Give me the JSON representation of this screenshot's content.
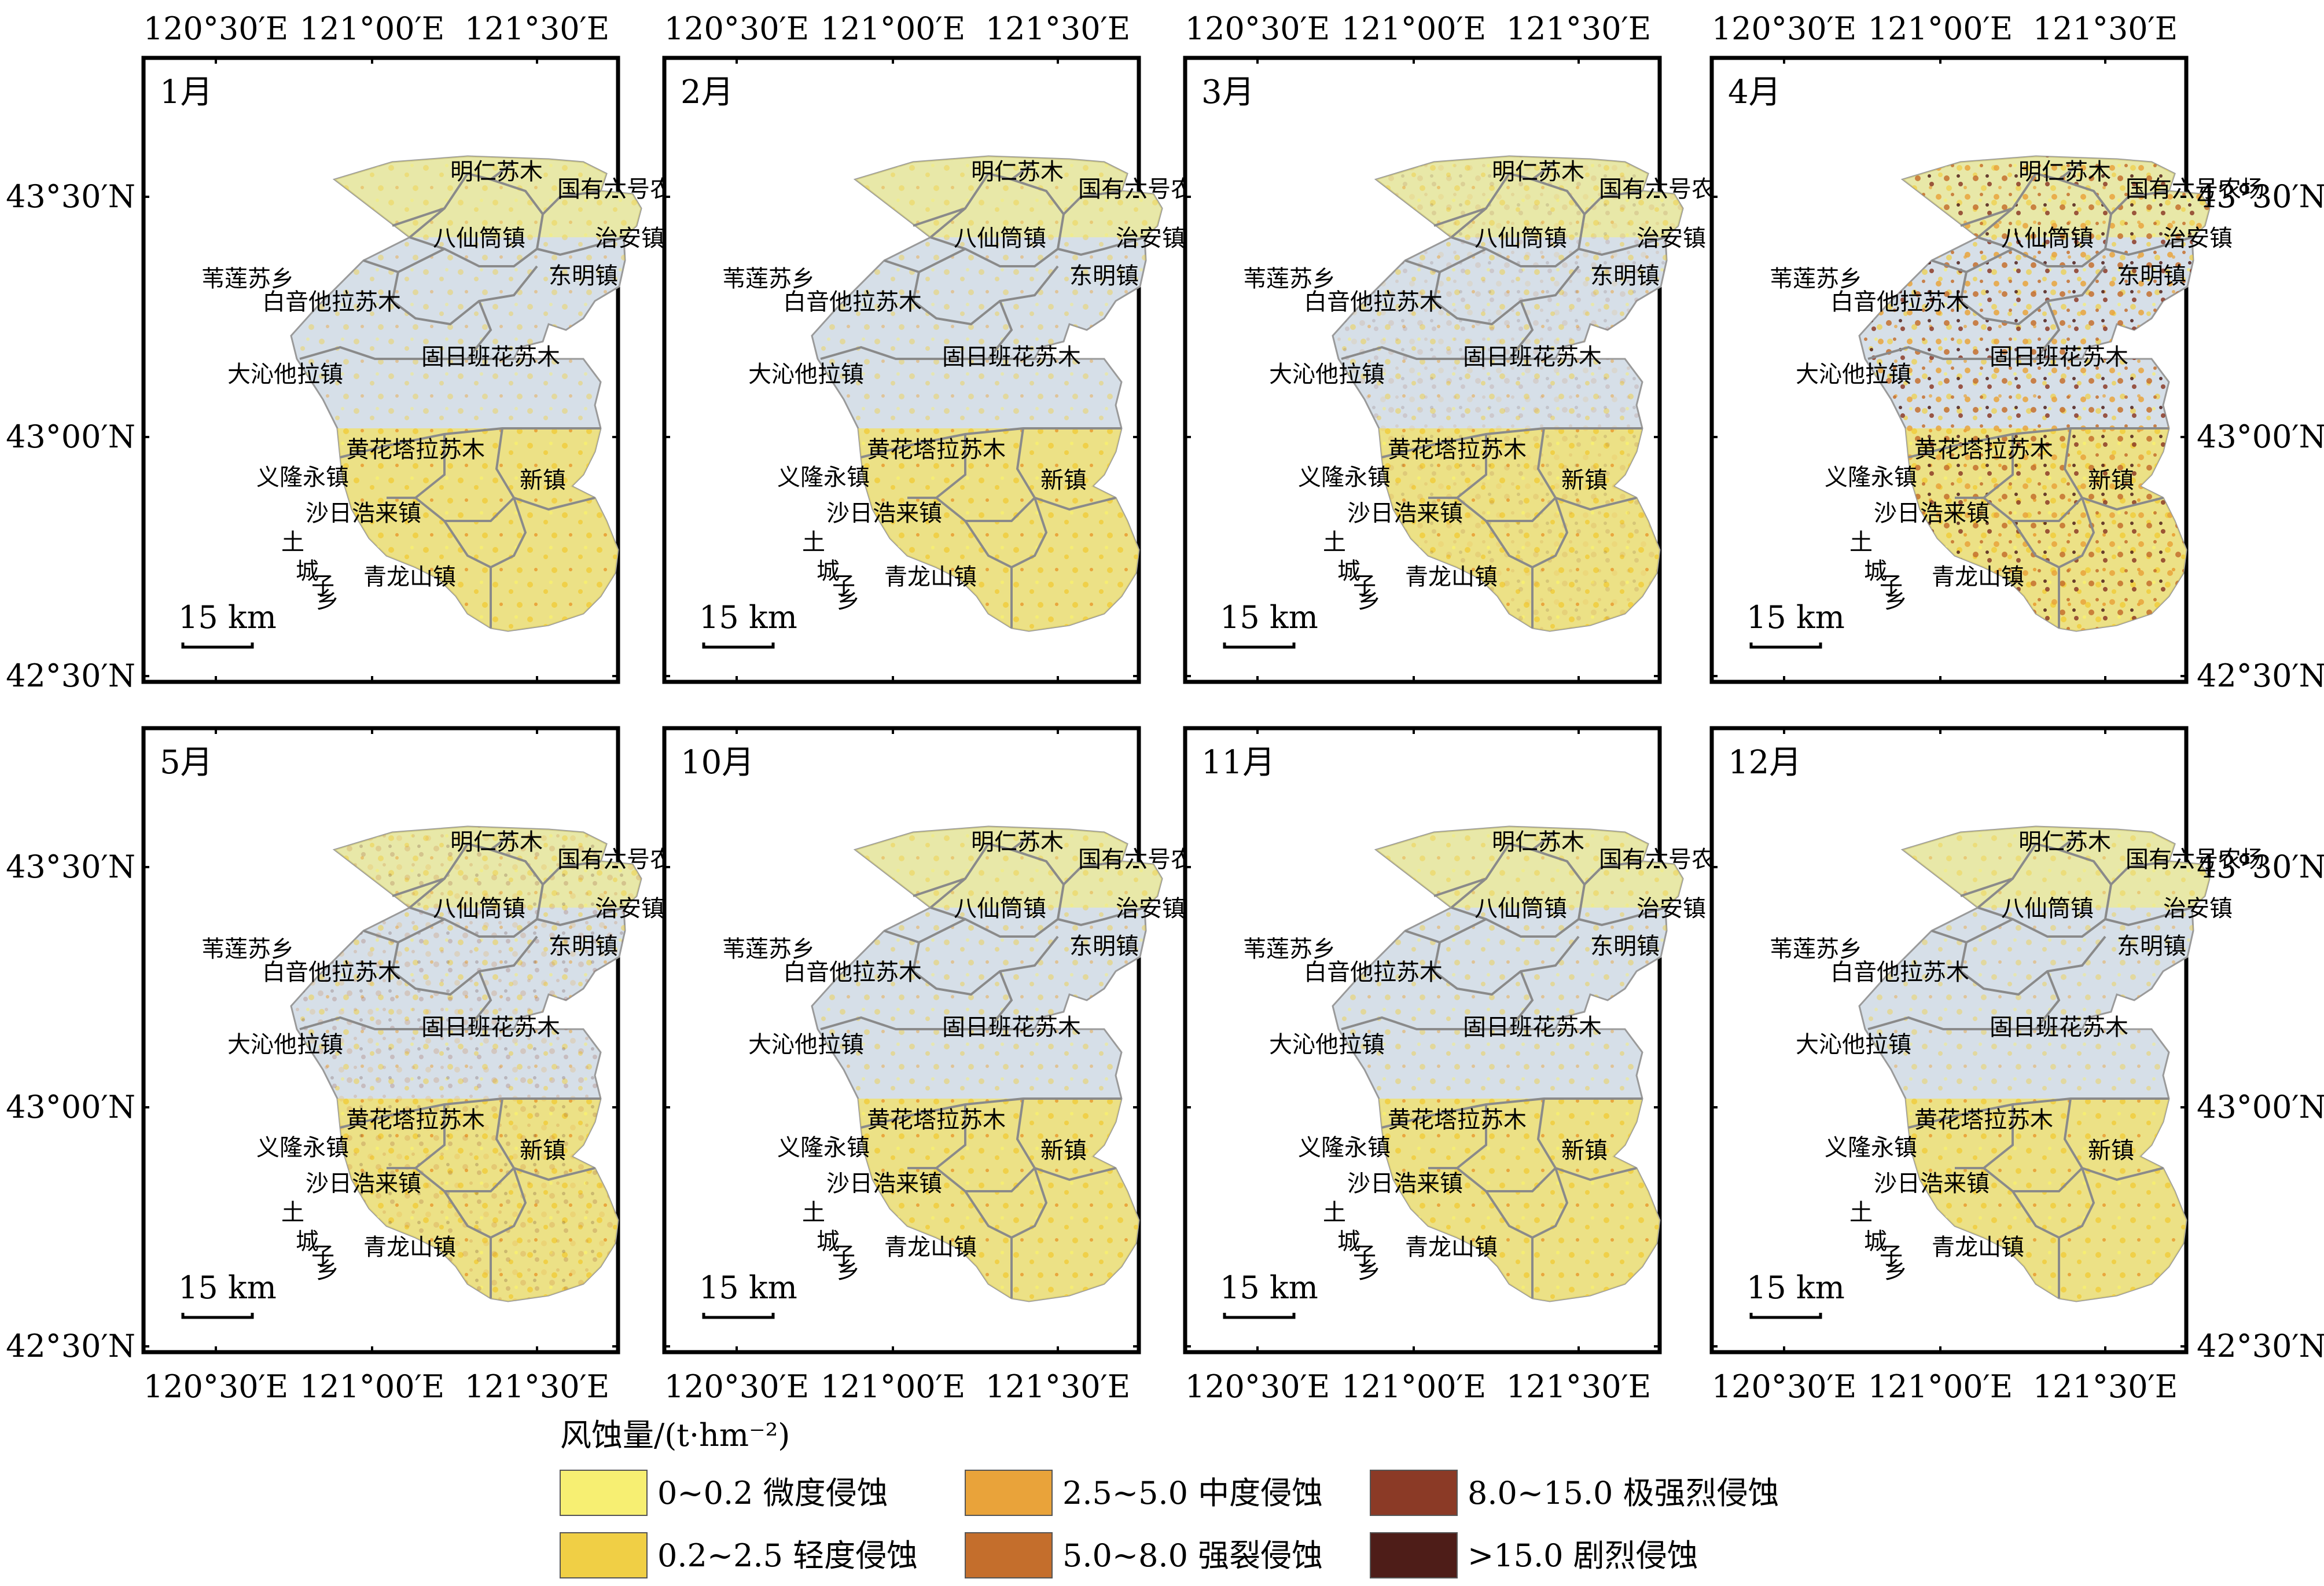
{
  "panel_titles": [
    "1月",
    "2月",
    "3月",
    "4月",
    "5月",
    "10月",
    "11月",
    "12月"
  ],
  "intensity": [
    0.25,
    0.25,
    0.4,
    0.9,
    0.45,
    0.3,
    0.3,
    0.25
  ],
  "lon_labels": [
    "120°30′E",
    "121°00′E",
    "121°30′E"
  ],
  "lat_labels": [
    "43°30′N",
    "43°00′N",
    "42°30′N"
  ],
  "scale_label": "15 km",
  "towns": [
    "明仁苏木",
    "国有六号农场",
    "八仙筒镇",
    "治安镇",
    "东明镇",
    "苇莲苏乡",
    "白音他拉苏木",
    "固日班花苏木",
    "大沁他拉镇",
    "黄花塔拉苏木",
    "义隆永镇",
    "新镇",
    "沙日浩来镇",
    "土",
    "城",
    "子",
    "乡",
    "青龙山镇"
  ],
  "legend": {
    "title": "风蚀量/(t·hm⁻²)",
    "classes": [
      {
        "range": "0~0.2",
        "label": "微度侵蚀",
        "color": "#f7ef72"
      },
      {
        "range": "0.2~2.5",
        "label": "轻度侵蚀",
        "color": "#f0cf45"
      },
      {
        "range": "2.5~5.0",
        "label": "中度侵蚀",
        "color": "#e9a33a"
      },
      {
        "range": "5.0~8.0",
        "label": "强裂侵蚀",
        "color": "#c46e2c"
      },
      {
        "range": "8.0~15.0",
        "label": "极强烈侵蚀",
        "color": "#8b3a26"
      },
      {
        "range": ">15.0",
        "label": "剧烈侵蚀",
        "color": "#4e1d18"
      }
    ]
  },
  "colors": {
    "background_land": "#d6dfe8",
    "boundary": "#8a8a8a"
  }
}
